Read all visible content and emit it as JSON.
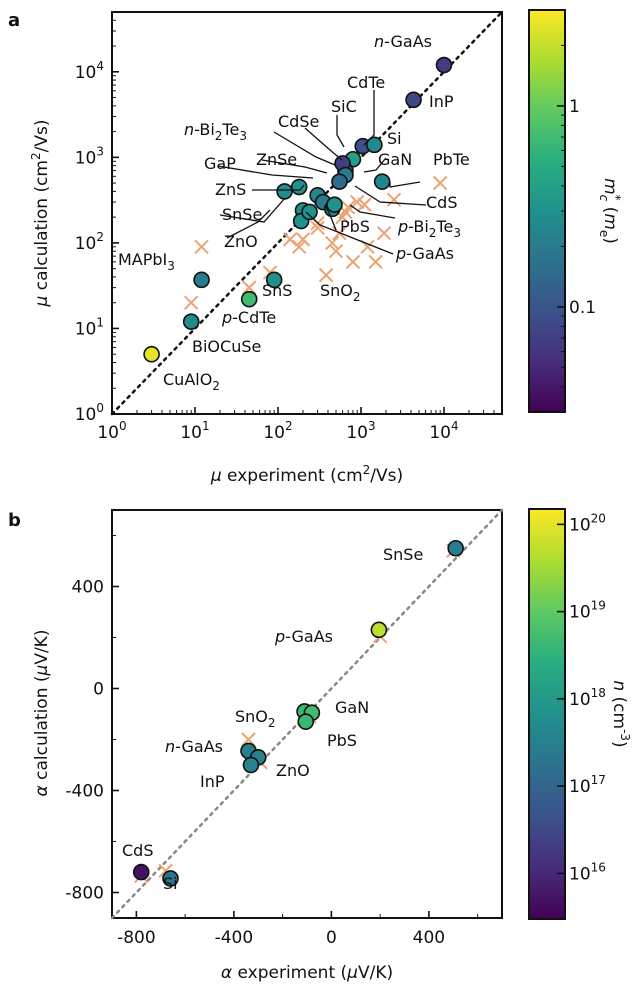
{
  "colors": {
    "expt_marker": "#eba373",
    "frame": "#111111",
    "diag_a": "#111111",
    "diag_b": "#888888"
  },
  "chart_data": [
    {
      "panel": "a",
      "type": "scatter",
      "xlabel": "μ experiment (cm²/Vs)",
      "ylabel": "μ calculation (cm²/Vs)",
      "xscale": "log",
      "yscale": "log",
      "xlim": [
        1,
        50000
      ],
      "ylim": [
        1,
        50000
      ],
      "x_ticks": [
        1,
        10,
        100,
        1000,
        10000
      ],
      "y_ticks": [
        1,
        10,
        100,
        1000,
        10000
      ],
      "tick_labels": [
        "10",
        "0",
        "1",
        "2",
        "3",
        "4"
      ],
      "grid": false,
      "diagonal": "y = x (dotted)",
      "colorbar": {
        "label": "m*c (me)",
        "scale": "log",
        "range": [
          0.03,
          3
        ],
        "ticks": [
          {
            "value": 1,
            "label": "1"
          },
          {
            "value": 0.1,
            "label": "0.1"
          }
        ],
        "colormap": "viridis"
      },
      "points": [
        {
          "label": "n-GaAs",
          "x": 10000,
          "y": 12000,
          "mc": 0.067
        },
        {
          "label": "InP",
          "x": 4300,
          "y": 4700,
          "mc": 0.08
        },
        {
          "label": "CdTe",
          "x": 1050,
          "y": 1350,
          "mc": 0.09
        },
        {
          "label": "SiC",
          "x": 800,
          "y": 950,
          "mc": 0.4
        },
        {
          "label": "Si",
          "x": 1450,
          "y": 1400,
          "mc": 0.26
        },
        {
          "label": "CdSe",
          "x": 650,
          "y": 700,
          "mc": 0.13
        },
        {
          "label": "n-Bi2Te3",
          "x": 600,
          "y": 850,
          "mc": 0.07
        },
        {
          "label": "GaN",
          "x": 650,
          "y": 620,
          "mc": 0.2
        },
        {
          "label": "PbTe",
          "x": 1800,
          "y": 520,
          "mc": 0.24
        },
        {
          "label": "ZnSe",
          "x": 550,
          "y": 520,
          "mc": 0.15
        },
        {
          "label": "GaP",
          "x": 300,
          "y": 360,
          "mc": 0.25
        },
        {
          "label": "ZnS",
          "x": 120,
          "y": 400,
          "mc": 0.28
        },
        {
          "label": "SnSe",
          "x": 180,
          "y": 450,
          "mc": 0.3
        },
        {
          "label": "CdS",
          "x": 350,
          "y": 300,
          "mc": 0.2
        },
        {
          "label": "PbS",
          "x": 450,
          "y": 250,
          "mc": 0.25
        },
        {
          "label": "p-Bi2Te3",
          "x": 200,
          "y": 240,
          "mc": 0.3
        },
        {
          "label": "ZnO",
          "x": 190,
          "y": 180,
          "mc": 0.3
        },
        {
          "label": "p-GaAs",
          "x": 240,
          "y": 230,
          "mc": 0.3
        },
        {
          "label": "SnO2",
          "x": 480,
          "y": 280,
          "mc": 0.3
        },
        {
          "label": "SnS",
          "x": 90,
          "y": 37,
          "mc": 0.3
        },
        {
          "label": "MAPbI3",
          "x": 12,
          "y": 37,
          "mc": 0.2
        },
        {
          "label": "p-CdTe",
          "x": 45,
          "y": 22,
          "mc": 0.7
        },
        {
          "label": "BiOCuSe",
          "x": 9,
          "y": 12,
          "mc": 0.27
        },
        {
          "label": "CuAlO2",
          "x": 3,
          "y": 5,
          "mc": 2.5
        }
      ],
      "experiment_markers": [
        {
          "x": 12,
          "y": 90
        },
        {
          "x": 9,
          "y": 20
        },
        {
          "x": 45,
          "y": 30
        },
        {
          "x": 80,
          "y": 45
        },
        {
          "x": 140,
          "y": 110
        },
        {
          "x": 180,
          "y": 90
        },
        {
          "x": 200,
          "y": 110
        },
        {
          "x": 300,
          "y": 150
        },
        {
          "x": 380,
          "y": 42
        },
        {
          "x": 450,
          "y": 100
        },
        {
          "x": 500,
          "y": 80
        },
        {
          "x": 550,
          "y": 130
        },
        {
          "x": 600,
          "y": 200
        },
        {
          "x": 700,
          "y": 260
        },
        {
          "x": 800,
          "y": 60
        },
        {
          "x": 900,
          "y": 300
        },
        {
          "x": 1200,
          "y": 90
        },
        {
          "x": 1500,
          "y": 60
        },
        {
          "x": 1900,
          "y": 130
        },
        {
          "x": 2500,
          "y": 320
        },
        {
          "x": 9000,
          "y": 500
        },
        {
          "x": 650,
          "y": 230
        },
        {
          "x": 1100,
          "y": 280
        },
        {
          "x": 300,
          "y": 170
        }
      ]
    },
    {
      "panel": "b",
      "type": "scatter",
      "xlabel": "α experiment (μV/K)",
      "ylabel": "α calculation (μV/K)",
      "xlim": [
        -900,
        700
      ],
      "ylim": [
        -900,
        700
      ],
      "x_ticks": [
        -800,
        -400,
        0,
        400
      ],
      "y_ticks": [
        -800,
        -400,
        0,
        400
      ],
      "grid": false,
      "diagonal": "y = x (dotted)",
      "colorbar": {
        "label": "n (cm⁻³)",
        "scale": "log",
        "range": [
          3000000000000000.0,
          1.5e+20
        ],
        "ticks": [
          {
            "value": 1e+16,
            "exp": "16"
          },
          {
            "value": 1e+17,
            "exp": "17"
          },
          {
            "value": 1e+18,
            "exp": "18"
          },
          {
            "value": 1e+19,
            "exp": "19"
          },
          {
            "value": 1e+20,
            "exp": "20"
          }
        ],
        "colormap": "viridis"
      },
      "points": [
        {
          "label": "SnSe",
          "x": 510,
          "y": 550,
          "n": 3e+17
        },
        {
          "label": "p-GaAs",
          "x": 195,
          "y": 230,
          "n": 5e+19
        },
        {
          "label": "SnO2",
          "x": -110,
          "y": -90,
          "n": 4e+18
        },
        {
          "label": "GaN",
          "x": -80,
          "y": -95,
          "n": 5e+18
        },
        {
          "label": "PbS",
          "x": -105,
          "y": -130,
          "n": 4e+18
        },
        {
          "label": "n-GaAs",
          "x": -340,
          "y": -245,
          "n": 3e+17
        },
        {
          "label": "ZnO",
          "x": -300,
          "y": -270,
          "n": 3e+17
        },
        {
          "label": "InP",
          "x": -330,
          "y": -300,
          "n": 3e+17
        },
        {
          "label": "CdS",
          "x": -780,
          "y": -720,
          "n": 5000000000000000.0
        },
        {
          "label": "Si",
          "x": -660,
          "y": -745,
          "n": 2e+17
        }
      ],
      "experiment_markers": [
        {
          "x": 500,
          "y": 540
        },
        {
          "x": 200,
          "y": 205
        },
        {
          "x": -110,
          "y": -120
        },
        {
          "x": -90,
          "y": -110
        },
        {
          "x": -340,
          "y": -200
        },
        {
          "x": -290,
          "y": -290
        },
        {
          "x": -330,
          "y": -270
        },
        {
          "x": -780,
          "y": -735
        },
        {
          "x": -680,
          "y": -715
        }
      ]
    }
  ],
  "text": {
    "a": {
      "letter": "a",
      "xlabel_sym": "μ",
      "xlabel_main": " experiment (cm",
      "xlabel_sup": "2",
      "xlabel_end": "/Vs)",
      "ylabel_sym": "μ",
      "ylabel_main": " calculation (cm",
      "ylabel_sup": "2",
      "ylabel_end": "/Vs)",
      "tick_base": "10",
      "tick_exps": [
        "0",
        "1",
        "2",
        "3",
        "4"
      ],
      "cbar_ticks": [
        "1",
        "0.1"
      ],
      "cbar_m": "m",
      "cbar_star": "*",
      "cbar_c": "c",
      "cbar_paren_open": " (",
      "cbar_me": "m",
      "cbar_e": "e",
      "cbar_paren_close": ")",
      "labels": {
        "nGaAs_pre": "n",
        "nGaAs_main": "-GaAs",
        "InP": "InP",
        "CdTe": "CdTe",
        "SiC": "SiC",
        "CdSe": "CdSe",
        "Si": "Si",
        "nBi_pre": "n",
        "nBi_a": "-Bi",
        "nBi_b": "2",
        "nBi_c": "Te",
        "nBi_d": "3",
        "GaN": "GaN",
        "PbTe": "PbTe",
        "ZnSe": "ZnSe",
        "GaP": "GaP",
        "ZnS": "ZnS",
        "CdS": "CdS",
        "SnSe": "SnSe",
        "PbS": "PbS",
        "pBi_pre": "p",
        "pBi_a": "-Bi",
        "pBi_b": "2",
        "pBi_c": "Te",
        "pBi_d": "3",
        "ZnO": "ZnO",
        "pGaAs_pre": "p",
        "pGaAs_main": "-GaAs",
        "MAPbI_a": "MAPbI",
        "MAPbI_b": "3",
        "SnS": "SnS",
        "SnO_a": "SnO",
        "SnO_b": "2",
        "pCdTe_pre": "p",
        "pCdTe_main": "-CdTe",
        "BiOCuSe": "BiOCuSe",
        "CuAlO_a": "CuAlO",
        "CuAlO_b": "2"
      }
    },
    "b": {
      "letter": "b",
      "xlabel_sym": "α",
      "xlabel_main": " experiment (",
      "xlabel_mu": "μ",
      "xlabel_end": "V/K)",
      "ylabel_sym": "α",
      "ylabel_main": " calculation (",
      "ylabel_mu": "μ",
      "ylabel_end": "V/K)",
      "x_ticks": [
        "-800",
        "-400",
        "0",
        "400"
      ],
      "y_ticks": [
        "400",
        "0",
        "-400",
        "-800"
      ],
      "cbar_base": "10",
      "cbar_exps": [
        "20",
        "19",
        "18",
        "17",
        "16"
      ],
      "cbar_n": "n",
      "cbar_unit": " (cm",
      "cbar_unit_sup": "-3",
      "cbar_unit_end": ")",
      "labels": {
        "SnSe": "SnSe",
        "pGaAs_pre": "p",
        "pGaAs_main": "-GaAs",
        "SnO_a": "SnO",
        "SnO_b": "2",
        "GaN": "GaN",
        "PbS": "PbS",
        "nGaAs_pre": "n",
        "nGaAs_main": "-GaAs",
        "ZnO": "ZnO",
        "InP": "InP",
        "CdS": "CdS",
        "Si": "Si"
      }
    }
  }
}
